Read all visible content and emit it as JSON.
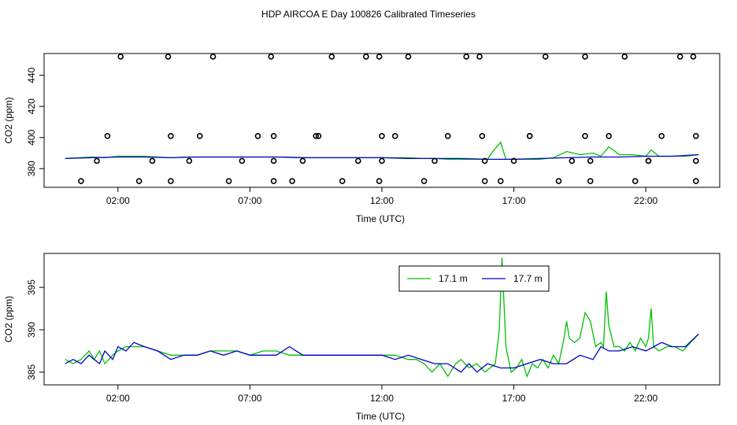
{
  "title": "HDP AIRCOA E  Day 100826  Calibrated Timeseries",
  "colors": {
    "green": "#00c000",
    "blue": "#0000cc",
    "markers": "#000000"
  },
  "chart_data": [
    {
      "type": "scatter",
      "name": "top-panel",
      "xlabel": "Time (UTC)",
      "ylabel": "CO2 (ppm)",
      "x_ticks": [
        2,
        7,
        12,
        17,
        22
      ],
      "x_tick_labels": [
        "02:00",
        "07:00",
        "12:00",
        "17:00",
        "22:00"
      ],
      "xlim": [
        -0.8,
        24.8
      ],
      "y_ticks": [
        380,
        400,
        420,
        440
      ],
      "y_tick_labels": [
        "380",
        "400",
        "420",
        "440"
      ],
      "ylim": [
        368,
        454
      ],
      "grid": false,
      "series": [
        {
          "color": "green",
          "style": "line",
          "x": [
            0,
            0.5,
            1,
            1.5,
            2,
            2.5,
            3,
            3.5,
            4,
            4.5,
            5,
            5.5,
            6,
            6.5,
            7,
            7.5,
            8,
            8.5,
            9,
            9.5,
            10,
            10.5,
            11,
            11.5,
            12,
            12.5,
            13,
            13.5,
            14,
            14.5,
            15,
            15.5,
            16,
            16.2,
            16.5,
            16.7,
            17,
            17.5,
            18,
            18.5,
            19,
            19.5,
            20,
            20.3,
            20.6,
            21,
            21.5,
            22,
            22.2,
            22.5,
            23,
            23.5,
            24
          ],
          "y": [
            386.5,
            387,
            387.5,
            387,
            388,
            388,
            388,
            387.5,
            387,
            387.5,
            387.5,
            387.5,
            387.5,
            387.5,
            387.5,
            387.5,
            387.5,
            387.5,
            387,
            387,
            387,
            387,
            387,
            387,
            387,
            387,
            387,
            386.5,
            386.5,
            386,
            386,
            386,
            386,
            391,
            397,
            386,
            386,
            386,
            386,
            387,
            391,
            389,
            390,
            388,
            394,
            389,
            389,
            388,
            392,
            388,
            388,
            388,
            389
          ]
        },
        {
          "color": "blue",
          "style": "line",
          "x": [
            0,
            1,
            2,
            3,
            4,
            5,
            6,
            7,
            8,
            9,
            10,
            11,
            12,
            13,
            14,
            15,
            16,
            17,
            18,
            19,
            20,
            21,
            22,
            23,
            24
          ],
          "y": [
            386.5,
            387,
            387.5,
            387.5,
            387,
            387.5,
            387.5,
            387.5,
            387.5,
            387,
            387,
            387,
            387,
            386.5,
            386.5,
            386.5,
            386,
            386,
            386.5,
            387,
            387.5,
            387.5,
            388,
            388,
            389
          ]
        },
        {
          "color": "markers",
          "style": "points",
          "x": [
            0.6,
            1.2,
            2.1,
            2.8,
            1.6,
            3.3,
            3.9,
            4,
            4,
            4.7,
            5.1,
            5.6,
            6.2,
            6.7,
            7.3,
            7.8,
            7.9,
            7.9,
            7.9,
            8.6,
            9,
            9.5,
            9.6,
            10.1,
            10.5,
            11.1,
            11.4,
            11.9,
            11.9,
            12,
            12,
            12.5,
            13,
            13.6,
            14,
            14.5,
            15.2,
            15.7,
            15.8,
            15.9,
            15.9,
            16.5,
            17,
            17.6,
            17.6,
            18.2,
            18.7,
            19.2,
            19.7,
            19.7,
            19.9,
            19.9,
            20.6,
            21.2,
            21.6,
            22.1,
            22.1,
            22.6,
            23.3,
            23.8,
            23.9,
            23.9,
            23.9
          ],
          "y": [
            372,
            385,
            452,
            372,
            401,
            385,
            452,
            372,
            401,
            385,
            401,
            452,
            372,
            385,
            401,
            452,
            401,
            372,
            385,
            372,
            385,
            401,
            401,
            452,
            372,
            385,
            452,
            452,
            372,
            401,
            385,
            401,
            452,
            372,
            385,
            401,
            452,
            452,
            401,
            385,
            372,
            372,
            385,
            401,
            401,
            452,
            372,
            385,
            452,
            401,
            385,
            372,
            401,
            452,
            372,
            385,
            385,
            401,
            452,
            452,
            401,
            385,
            372
          ]
        }
      ]
    },
    {
      "type": "line",
      "name": "bottom-panel",
      "xlabel": "Time (UTC)",
      "ylabel": "CO2 (ppm)",
      "x_ticks": [
        2,
        7,
        12,
        17,
        22
      ],
      "x_tick_labels": [
        "02:00",
        "07:00",
        "12:00",
        "17:00",
        "22:00"
      ],
      "xlim": [
        -0.8,
        24.8
      ],
      "y_ticks": [
        385,
        390,
        395
      ],
      "y_tick_labels": [
        "385",
        "390",
        "395"
      ],
      "ylim": [
        383.5,
        399
      ],
      "grid": false,
      "legend": {
        "placement": "top-center",
        "entries": [
          {
            "label": "17.1 m",
            "color": "green"
          },
          {
            "label": "17.7 m",
            "color": "blue"
          }
        ]
      },
      "series": [
        {
          "name": "17.1 m",
          "color": "green",
          "x": [
            0,
            0.3,
            0.6,
            0.9,
            1.1,
            1.3,
            1.5,
            1.8,
            2,
            2.3,
            2.6,
            3,
            3.5,
            4,
            4.5,
            5,
            5.5,
            6,
            6.5,
            7,
            7.5,
            8,
            8.5,
            9,
            9.5,
            10,
            10.5,
            11,
            11.5,
            12,
            12.5,
            13,
            13.3,
            13.6,
            13.9,
            14.2,
            14.5,
            14.8,
            15,
            15.3,
            15.6,
            15.9,
            16.1,
            16.3,
            16.45,
            16.55,
            16.7,
            16.9,
            17.1,
            17.3,
            17.5,
            17.7,
            17.9,
            18.1,
            18.3,
            18.5,
            18.7,
            18.9,
            19,
            19.1,
            19.3,
            19.5,
            19.7,
            19.9,
            20.1,
            20.3,
            20.4,
            20.5,
            20.6,
            20.8,
            21,
            21.2,
            21.4,
            21.6,
            21.8,
            22,
            22.1,
            22.2,
            22.3,
            22.5,
            22.8,
            23.1,
            23.4,
            23.7,
            24
          ],
          "y": [
            386.5,
            386,
            386.5,
            387.5,
            386.5,
            387.5,
            386,
            387,
            387.5,
            388,
            388,
            388,
            387.5,
            387,
            387,
            387,
            387.5,
            387.5,
            387.5,
            387,
            387.5,
            387.5,
            387,
            387,
            387,
            387,
            387,
            387,
            387,
            387,
            387,
            386.5,
            386.5,
            386,
            385,
            386,
            384.5,
            386,
            386.5,
            385.5,
            386,
            385,
            385.5,
            386,
            390,
            398.5,
            388,
            385,
            385.5,
            386.5,
            384.5,
            386,
            385.5,
            386.5,
            385.5,
            387,
            386,
            389,
            391,
            389,
            388.5,
            389,
            392,
            391,
            388,
            388.5,
            388,
            394.5,
            390.5,
            388,
            388,
            387.5,
            388.5,
            387.5,
            389,
            388,
            389,
            392.5,
            388,
            387.5,
            388,
            388,
            387.5,
            388.5,
            389.5
          ]
        },
        {
          "name": "17.7 m",
          "color": "blue",
          "x": [
            0,
            0.3,
            0.6,
            0.9,
            1.1,
            1.3,
            1.5,
            1.8,
            2,
            2.3,
            2.6,
            3,
            3.5,
            4,
            4.5,
            5,
            5.5,
            6,
            6.5,
            7,
            7.5,
            8,
            8.5,
            9,
            9.5,
            10,
            10.5,
            11,
            11.5,
            12,
            12.5,
            13,
            13.5,
            14,
            14.5,
            15,
            15.3,
            15.6,
            16,
            16.5,
            17,
            17.5,
            18,
            18.5,
            19,
            19.5,
            20,
            20.3,
            20.6,
            21,
            21.5,
            22,
            22.3,
            22.6,
            23,
            23.5,
            24
          ],
          "y": [
            386,
            386.5,
            386,
            387,
            386.5,
            386,
            387.5,
            386.5,
            388,
            387.5,
            388.5,
            388,
            387.5,
            386.5,
            387,
            387,
            387.5,
            387,
            387.5,
            387,
            387,
            387,
            388,
            387,
            387,
            387,
            387,
            387,
            387,
            387,
            386.5,
            387,
            386.5,
            386,
            386,
            385,
            386,
            385,
            386,
            385.5,
            385.5,
            386,
            386.5,
            386,
            386,
            387,
            386.5,
            388,
            387.5,
            387.5,
            388,
            387.5,
            388,
            388.5,
            388,
            388,
            389.5
          ]
        }
      ]
    }
  ]
}
